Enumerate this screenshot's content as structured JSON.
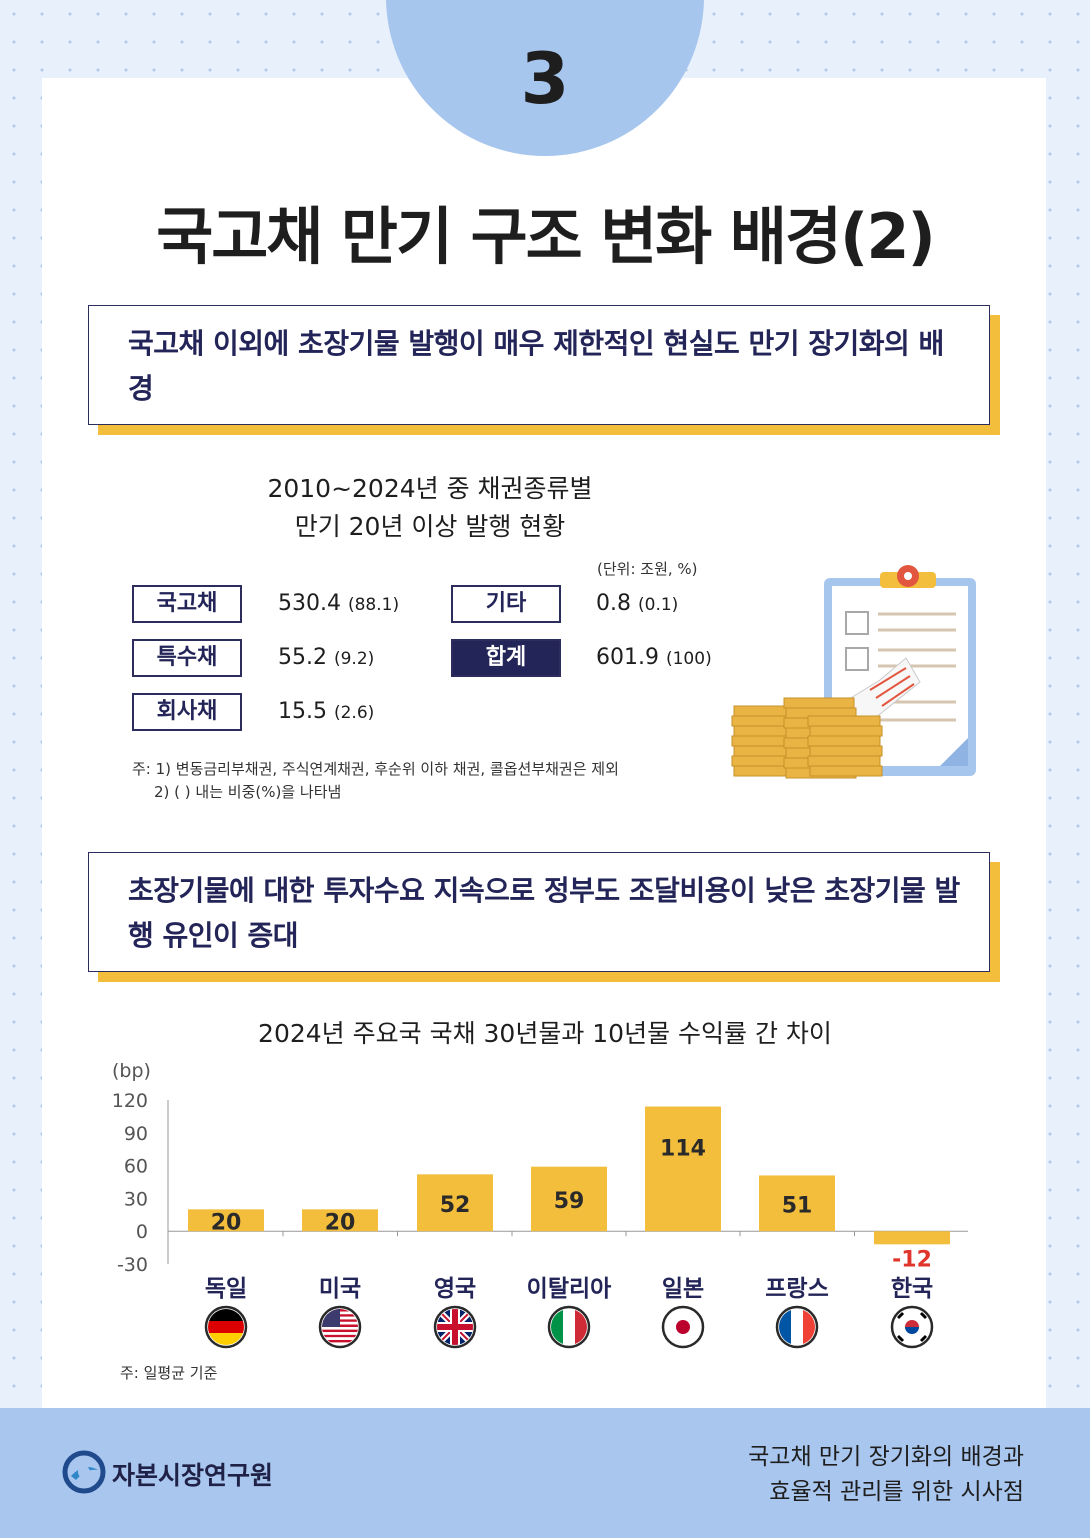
{
  "page_number": "3",
  "title": "국고채 만기 구조 변화 배경(2)",
  "callout1": "국고채 이외에 초장기물 발행이 매우 제한적인 현실도 만기 장기화의 배경",
  "table": {
    "title_line1": "2010~2024년 중 채권종류별",
    "title_line2": "만기 20년 이상 발행 현황",
    "unit": "(단위: 조원, %)",
    "rows": [
      {
        "label": "국고채",
        "value": "530.4",
        "pct": "(88.1)"
      },
      {
        "label": "특수채",
        "value": "55.2",
        "pct": "(9.2)"
      },
      {
        "label": "회사채",
        "value": "15.5",
        "pct": "(2.6)"
      },
      {
        "label": "기타",
        "value": "0.8",
        "pct": "(0.1)"
      },
      {
        "label": "합계",
        "value": "601.9",
        "pct": "(100)"
      }
    ],
    "note1": "주: 1) 변동금리부채권, 주식연계채권, 후순위 이하 채권, 콜옵션부채권은 제외",
    "note2": "2) ( ) 내는 비중(%)을 나타냄"
  },
  "callout2": "초장기물에 대한 투자수요 지속으로 정부도 조달비용이 낮은 초장기물 발행 유인이 증대",
  "chart_data": {
    "type": "bar",
    "title": "2024년 주요국 국채 30년물과 10년물 수익률 간 차이",
    "ylabel": "(bp)",
    "ylim": [
      -30,
      120
    ],
    "yticks": [
      "120",
      "90",
      "60",
      "30",
      "0",
      "-30"
    ],
    "categories": [
      "독일",
      "미국",
      "영국",
      "이탈리아",
      "일본",
      "프랑스",
      "한국"
    ],
    "values": [
      20,
      20,
      52,
      59,
      114,
      51,
      -12
    ],
    "value_labels": [
      "20",
      "20",
      "52",
      "59",
      "114",
      "51",
      "-12"
    ],
    "bar_color": "#f2be3c",
    "negative_label_color": "#e0352b",
    "flag_icons": [
      "germany-flag-icon",
      "usa-flag-icon",
      "uk-flag-icon",
      "italy-flag-icon",
      "japan-flag-icon",
      "france-flag-icon",
      "korea-flag-icon"
    ],
    "note": "주: 일평균 기준"
  },
  "footer": {
    "logo": "자본시장연구원",
    "report_line1": "국고채 만기 장기화의 배경과",
    "report_line2": "효율적 관리를 위한 시사점"
  }
}
